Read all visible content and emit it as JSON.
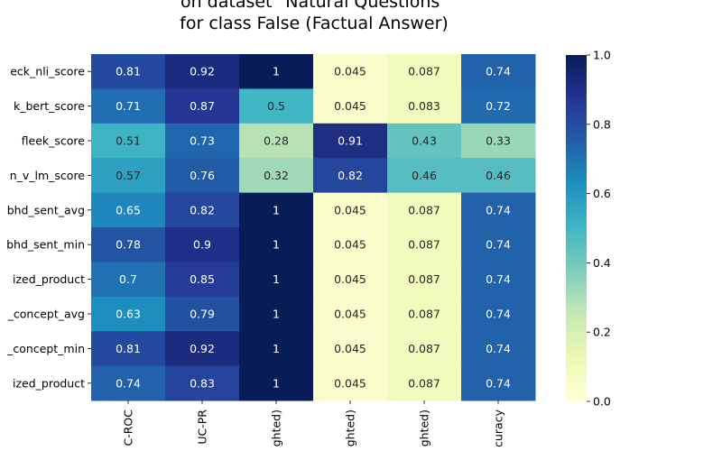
{
  "chart_data": {
    "type": "heatmap",
    "title_lines": [
      "on dataset \"Natural Questions\"",
      "for class False (Factual Answer)"
    ],
    "rows": [
      "eck_nli_score",
      "k_bert_score",
      "fleek_score",
      "n_v_lm_score",
      "bhd_sent_avg",
      "bhd_sent_min",
      "ized_product",
      "_concept_avg",
      "_concept_min",
      "ized_product"
    ],
    "columns": [
      "C-ROC",
      "UC-PR",
      "ghted)",
      "ghted)",
      "ghted)",
      "curacy"
    ],
    "values": [
      [
        0.81,
        0.92,
        1,
        0.045,
        0.087,
        0.74
      ],
      [
        0.71,
        0.87,
        0.5,
        0.045,
        0.083,
        0.72
      ],
      [
        0.51,
        0.73,
        0.28,
        0.91,
        0.43,
        0.33
      ],
      [
        0.57,
        0.76,
        0.32,
        0.82,
        0.46,
        0.46
      ],
      [
        0.65,
        0.82,
        1,
        0.045,
        0.087,
        0.74
      ],
      [
        0.78,
        0.9,
        1,
        0.045,
        0.087,
        0.74
      ],
      [
        0.7,
        0.85,
        1,
        0.045,
        0.087,
        0.74
      ],
      [
        0.63,
        0.79,
        1,
        0.045,
        0.087,
        0.74
      ],
      [
        0.81,
        0.92,
        1,
        0.045,
        0.087,
        0.74
      ],
      [
        0.74,
        0.83,
        1,
        0.045,
        0.087,
        0.74
      ]
    ],
    "value_labels": [
      [
        "0.81",
        "0.92",
        "1",
        "0.045",
        "0.087",
        "0.74"
      ],
      [
        "0.71",
        "0.87",
        "0.5",
        "0.045",
        "0.083",
        "0.72"
      ],
      [
        "0.51",
        "0.73",
        "0.28",
        "0.91",
        "0.43",
        "0.33"
      ],
      [
        "0.57",
        "0.76",
        "0.32",
        "0.82",
        "0.46",
        "0.46"
      ],
      [
        "0.65",
        "0.82",
        "1",
        "0.045",
        "0.087",
        "0.74"
      ],
      [
        "0.78",
        "0.9",
        "1",
        "0.045",
        "0.087",
        "0.74"
      ],
      [
        "0.7",
        "0.85",
        "1",
        "0.045",
        "0.087",
        "0.74"
      ],
      [
        "0.63",
        "0.79",
        "1",
        "0.045",
        "0.087",
        "0.74"
      ],
      [
        "0.81",
        "0.92",
        "1",
        "0.045",
        "0.087",
        "0.74"
      ],
      [
        "0.74",
        "0.83",
        "1",
        "0.045",
        "0.087",
        "0.74"
      ]
    ],
    "colorbar": {
      "colormap": "YlGnBu",
      "range": [
        0,
        1
      ],
      "ticks": [
        "0.0",
        "0.2",
        "0.4",
        "0.6",
        "0.8",
        "1.0"
      ]
    },
    "legend": "colorbar-right"
  }
}
